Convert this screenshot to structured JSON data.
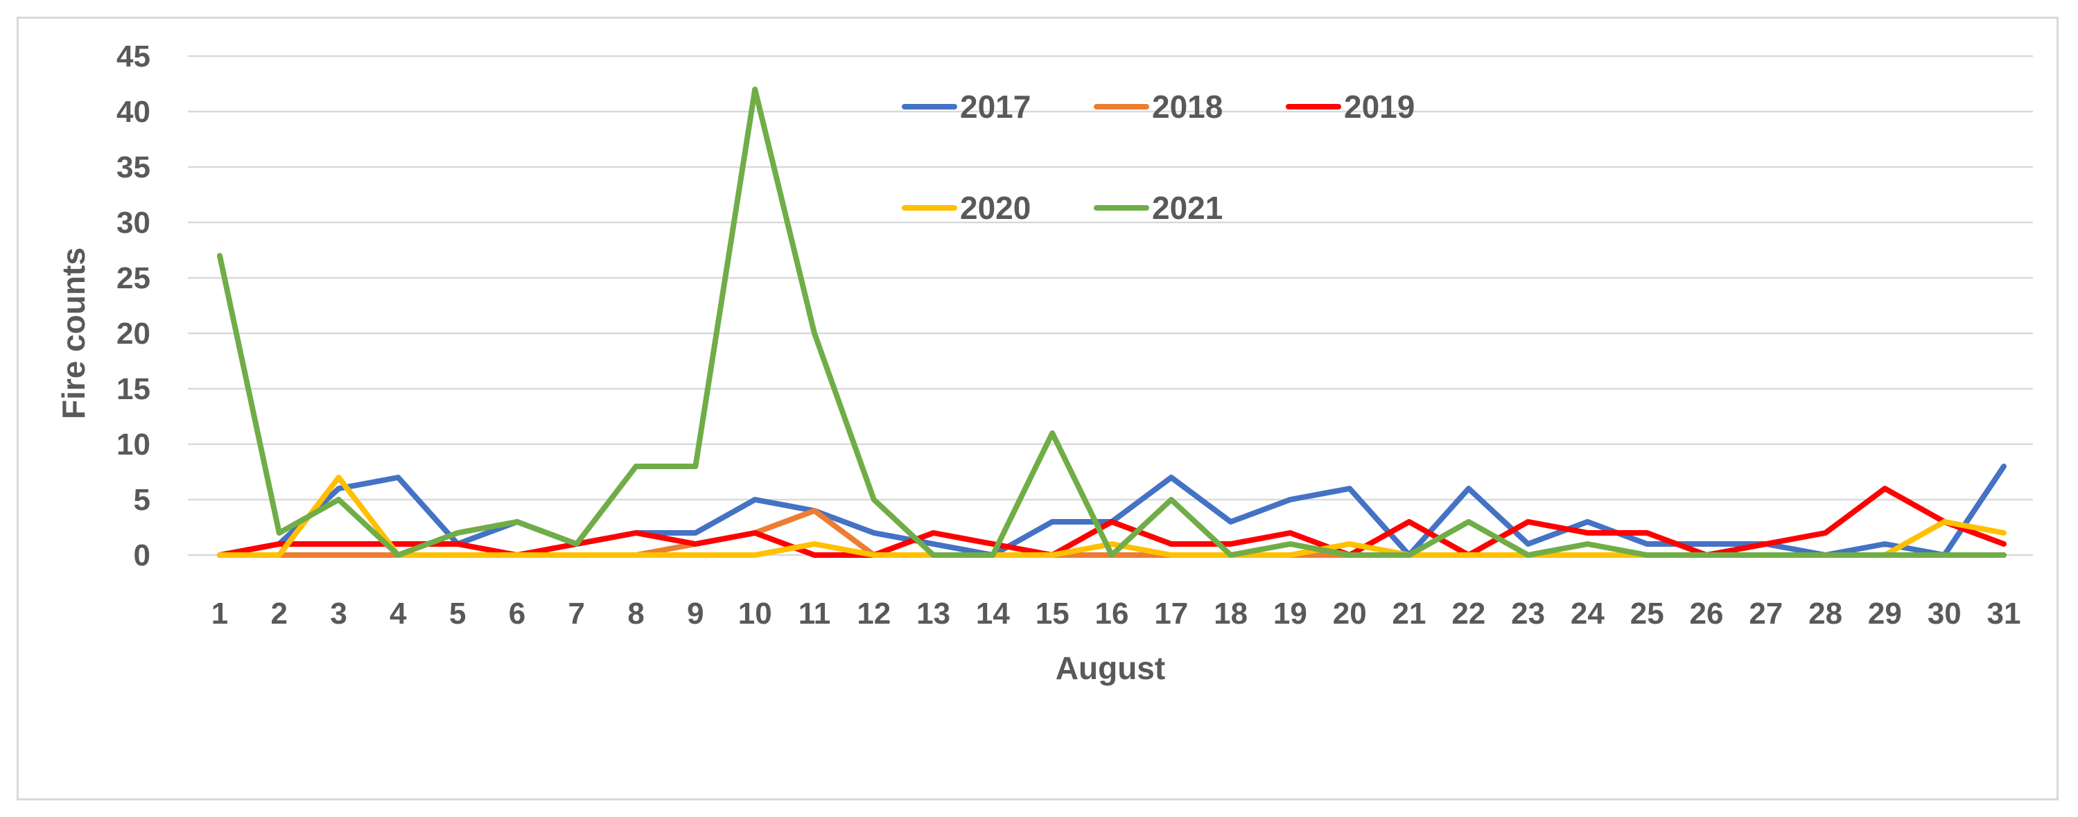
{
  "chart_data": {
    "type": "line",
    "title": "",
    "xlabel": "August",
    "ylabel": "Fire counts",
    "ylim": [
      0,
      45
    ],
    "yticks": [
      "0",
      "5",
      "10",
      "15",
      "20",
      "25",
      "30",
      "35",
      "40",
      "45"
    ],
    "categories": [
      "1",
      "2",
      "3",
      "4",
      "5",
      "6",
      "7",
      "8",
      "9",
      "10",
      "11",
      "12",
      "13",
      "14",
      "15",
      "16",
      "17",
      "18",
      "19",
      "20",
      "21",
      "22",
      "23",
      "24",
      "25",
      "26",
      "27",
      "28",
      "29",
      "30",
      "31"
    ],
    "grid": true,
    "legend_position": "top-center",
    "series": [
      {
        "name": "2017",
        "color": "#4472C4",
        "values": [
          0,
          1,
          6,
          7,
          1,
          3,
          1,
          2,
          2,
          5,
          4,
          2,
          1,
          0,
          3,
          3,
          7,
          3,
          5,
          6,
          0,
          6,
          1,
          3,
          1,
          1,
          1,
          0,
          1,
          0,
          8
        ]
      },
      {
        "name": "2018",
        "color": "#ED7D31",
        "values": [
          0,
          0,
          0,
          0,
          0,
          0,
          0,
          0,
          1,
          2,
          4,
          0,
          0,
          0,
          0,
          0,
          0,
          0,
          0,
          0,
          0,
          0,
          0,
          0,
          0,
          0,
          0,
          0,
          0,
          0,
          0
        ]
      },
      {
        "name": "2019",
        "color": "#FF0000",
        "values": [
          0,
          1,
          1,
          1,
          1,
          0,
          1,
          2,
          1,
          2,
          0,
          0,
          2,
          1,
          0,
          3,
          1,
          1,
          2,
          0,
          3,
          0,
          3,
          2,
          2,
          0,
          1,
          2,
          6,
          3,
          1
        ]
      },
      {
        "name": "2020",
        "color": "#FFC000",
        "values": [
          0,
          0,
          7,
          0,
          0,
          0,
          0,
          0,
          0,
          0,
          1,
          0,
          0,
          0,
          0,
          1,
          0,
          0,
          0,
          1,
          0,
          0,
          0,
          0,
          0,
          0,
          0,
          0,
          0,
          3,
          2
        ]
      },
      {
        "name": "2021",
        "color": "#70AD47",
        "values": [
          27,
          2,
          5,
          0,
          2,
          3,
          1,
          8,
          8,
          42,
          20,
          5,
          0,
          0,
          11,
          0,
          5,
          0,
          1,
          0,
          0,
          3,
          0,
          1,
          0,
          0,
          0,
          0,
          0,
          0,
          0
        ]
      }
    ]
  }
}
